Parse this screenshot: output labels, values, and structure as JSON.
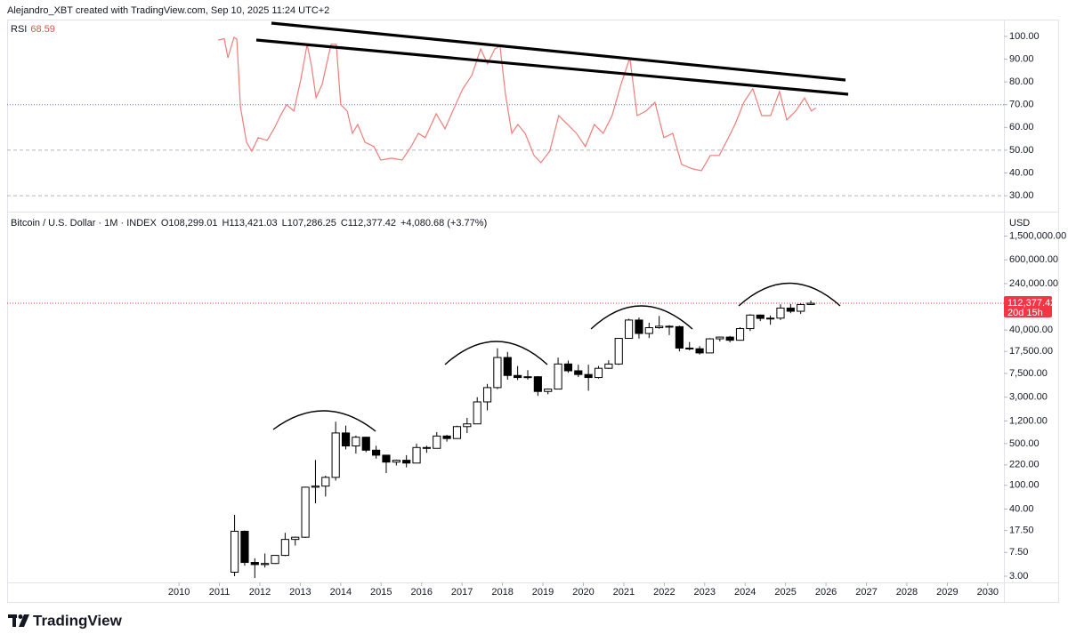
{
  "header": "Alejandro_XBT created with TradingView.com, Sep 10, 2025 11:24 UTC+2",
  "brand": "TradingView",
  "chart_data": [
    {
      "type": "line",
      "title": "RSI",
      "xlim": [
        2005.75,
        2030.4
      ],
      "ylim": [
        23,
        107.4
      ],
      "yticks": [
        {
          "value": 100,
          "label": "100.00"
        },
        {
          "value": 90,
          "label": "90.00"
        },
        {
          "value": 80,
          "label": "80.00"
        },
        {
          "value": 70,
          "label": "70.00"
        },
        {
          "value": 60,
          "label": "60.00"
        },
        {
          "value": 50,
          "label": "50.00"
        },
        {
          "value": 40,
          "label": "40.00"
        },
        {
          "value": 30,
          "label": "30.00"
        }
      ],
      "hlines": [
        {
          "value": 70,
          "color": "#6c7cd6"
        },
        {
          "value": 50,
          "color": "#b2b5be"
        },
        {
          "value": 30,
          "color": "#b2b5be"
        }
      ],
      "x": [
        2010.97,
        2011.12,
        2011.21,
        2011.36,
        2011.43,
        2011.52,
        2011.67,
        2011.8,
        2011.96,
        2012.18,
        2012.35,
        2012.51,
        2012.66,
        2012.84,
        2013.01,
        2013.17,
        2013.28,
        2013.39,
        2013.54,
        2013.76,
        2013.89,
        2014.0,
        2014.16,
        2014.29,
        2014.42,
        2014.6,
        2014.82,
        2014.99,
        2015.26,
        2015.52,
        2015.74,
        2015.92,
        2016.09,
        2016.36,
        2016.58,
        2016.8,
        2017.02,
        2017.24,
        2017.46,
        2017.63,
        2017.81,
        2017.94,
        2018.07,
        2018.23,
        2018.38,
        2018.56,
        2018.78,
        2018.95,
        2019.17,
        2019.39,
        2019.61,
        2019.83,
        2020.05,
        2020.27,
        2020.49,
        2020.71,
        2020.93,
        2021.15,
        2021.33,
        2021.55,
        2021.77,
        2021.99,
        2022.21,
        2022.43,
        2022.7,
        2022.92,
        2023.14,
        2023.36,
        2023.53,
        2023.75,
        2023.97,
        2024.19,
        2024.41,
        2024.63,
        2024.85,
        2025.03,
        2025.25,
        2025.47,
        2025.64,
        2025.75
      ],
      "series": [
        {
          "name": "RSI",
          "color": "#ee7d78",
          "values": [
            98.4,
            99,
            90.6,
            99.6,
            98.8,
            69,
            53.5,
            49.6,
            55.5,
            54.3,
            59.4,
            65.2,
            70,
            67.2,
            80.9,
            96.5,
            86.7,
            73,
            78.9,
            96.5,
            96.5,
            70,
            67.2,
            57.4,
            61.3,
            53.5,
            51.6,
            45.7,
            46.5,
            45.7,
            51.6,
            57.4,
            55.5,
            66,
            59.4,
            68.4,
            77,
            82.8,
            94.5,
            87.9,
            94.5,
            95.7,
            75,
            57.4,
            61.3,
            57.4,
            47.7,
            44.5,
            49.6,
            65.2,
            61.3,
            57.4,
            51.6,
            61.3,
            57.4,
            65.2,
            78.9,
            90.6,
            65.2,
            67.2,
            71.1,
            55.5,
            57.4,
            43.75,
            41.8,
            41,
            47.7,
            47.7,
            53.5,
            61.3,
            71.1,
            77,
            65.2,
            65.2,
            75.8,
            63.3,
            67.2,
            73,
            67.2,
            68.59
          ]
        }
      ]
    },
    {
      "type": "candlestick",
      "title": "Bitcoin / U.S. Dollar · 1M · INDEX",
      "legend_values": [
        "O108,299.01",
        "H113,421.03",
        "L107,286.25",
        "C112,377.42",
        "+4,080.68 (+3.77%)"
      ],
      "currency": "USD",
      "log_scale": true,
      "xlim": [
        2005.75,
        2030.4
      ],
      "ylim": [
        2.36,
        3600000
      ],
      "xticks": [
        2010,
        2011,
        2012,
        2013,
        2014,
        2015,
        2016,
        2017,
        2018,
        2019,
        2020,
        2021,
        2022,
        2023,
        2024,
        2025,
        2026,
        2027,
        2028,
        2029,
        2030
      ],
      "yticks": [
        {
          "value": 1500000,
          "label": "1,500,000.00"
        },
        {
          "value": 600000,
          "label": "600,000.00"
        },
        {
          "value": 240000,
          "label": "240,000.00"
        },
        {
          "value": 40000,
          "label": "40,000.00"
        },
        {
          "value": 17500,
          "label": "17,500.00"
        },
        {
          "value": 7500,
          "label": "7,500.00"
        },
        {
          "value": 3000,
          "label": "3,000.00"
        },
        {
          "value": 1200,
          "label": "1,200.00"
        },
        {
          "value": 500,
          "label": "500.00"
        },
        {
          "value": 220,
          "label": "220.00"
        },
        {
          "value": 100,
          "label": "100.00"
        },
        {
          "value": 40,
          "label": "40.00"
        },
        {
          "value": 17.5,
          "label": "17.50"
        },
        {
          "value": 7.5,
          "label": "7.50"
        },
        {
          "value": 3,
          "label": "3.00"
        }
      ],
      "last_price": {
        "value": 112377.42,
        "label": "112,377.42"
      },
      "countdown": "20d 15h",
      "up_color": "#ffffff",
      "down_color": "#000000",
      "x": [
        2011.375,
        2011.625,
        2011.875,
        2012.125,
        2012.375,
        2012.625,
        2012.875,
        2013.125,
        2013.375,
        2013.625,
        2013.875,
        2014.125,
        2014.375,
        2014.625,
        2014.875,
        2015.125,
        2015.375,
        2015.625,
        2015.875,
        2016.125,
        2016.375,
        2016.625,
        2016.875,
        2017.125,
        2017.375,
        2017.625,
        2017.875,
        2018.125,
        2018.375,
        2018.625,
        2018.875,
        2019.125,
        2019.375,
        2019.625,
        2019.875,
        2020.125,
        2020.375,
        2020.625,
        2020.875,
        2021.125,
        2021.375,
        2021.625,
        2021.875,
        2022.125,
        2022.375,
        2022.625,
        2022.875,
        2023.125,
        2023.375,
        2023.625,
        2023.875,
        2024.125,
        2024.375,
        2024.625,
        2024.875,
        2025.125,
        2025.375,
        2025.625
      ],
      "open": [
        3.5,
        17,
        5.1,
        4.7,
        4.9,
        6.7,
        12.4,
        13.5,
        93,
        97,
        136,
        754,
        457,
        640,
        388,
        320,
        245,
        263,
        236,
        430,
        416,
        670,
        608,
        963,
        1070,
        2500,
        4340,
        13860,
        6930,
        6400,
        6600,
        3740,
        4100,
        10800,
        8300,
        7190,
        6400,
        9140,
        10780,
        28990,
        58800,
        35040,
        43790,
        46300,
        45500,
        19940,
        19430,
        16540,
        28480,
        30470,
        26970,
        42280,
        71290,
        62680,
        63330,
        93430,
        82550,
        107140
      ],
      "high": [
        32,
        17.5,
        6,
        7.2,
        6.8,
        16,
        13.8,
        95,
        266,
        145,
        1163,
        1000,
        680,
        650,
        460,
        320,
        270,
        320,
        500,
        460,
        780,
        700,
        1000,
        1350,
        3000,
        5000,
        19800,
        17200,
        9990,
        8500,
        6750,
        4200,
        13800,
        12300,
        10500,
        10500,
        10000,
        12450,
        29300,
        61800,
        64900,
        52900,
        69000,
        48200,
        47400,
        25200,
        21500,
        29200,
        31000,
        31800,
        44700,
        73800,
        72800,
        70000,
        108300,
        109400,
        111900,
        124500
      ],
      "low": [
        3,
        4.5,
        2.8,
        4.2,
        4.8,
        6.5,
        9.8,
        13.2,
        50,
        65,
        120,
        400,
        340,
        360,
        280,
        160,
        215,
        200,
        235,
        350,
        415,
        540,
        600,
        750,
        1060,
        1800,
        4100,
        5900,
        5800,
        5900,
        3150,
        3350,
        4050,
        7700,
        6500,
        3850,
        6150,
        8900,
        10400,
        28800,
        28800,
        29300,
        42000,
        32900,
        17600,
        18200,
        15500,
        16500,
        25800,
        24900,
        26550,
        38500,
        56500,
        49000,
        58900,
        76600,
        74400,
        107000
      ],
      "close": [
        17,
        5.1,
        4.7,
        4.9,
        6.7,
        12.4,
        13.5,
        93,
        97,
        136,
        754,
        457,
        640,
        388,
        320,
        245,
        263,
        236,
        430,
        416,
        670,
        608,
        963,
        1070,
        2500,
        4340,
        13860,
        6930,
        6400,
        6600,
        3740,
        4100,
        10800,
        8300,
        7190,
        6400,
        9140,
        10780,
        28990,
        58800,
        35040,
        43790,
        46300,
        45500,
        19940,
        19430,
        16540,
        28480,
        30470,
        26970,
        42280,
        71290,
        62680,
        63330,
        93430,
        82550,
        107140,
        112377.42
      ]
    }
  ]
}
